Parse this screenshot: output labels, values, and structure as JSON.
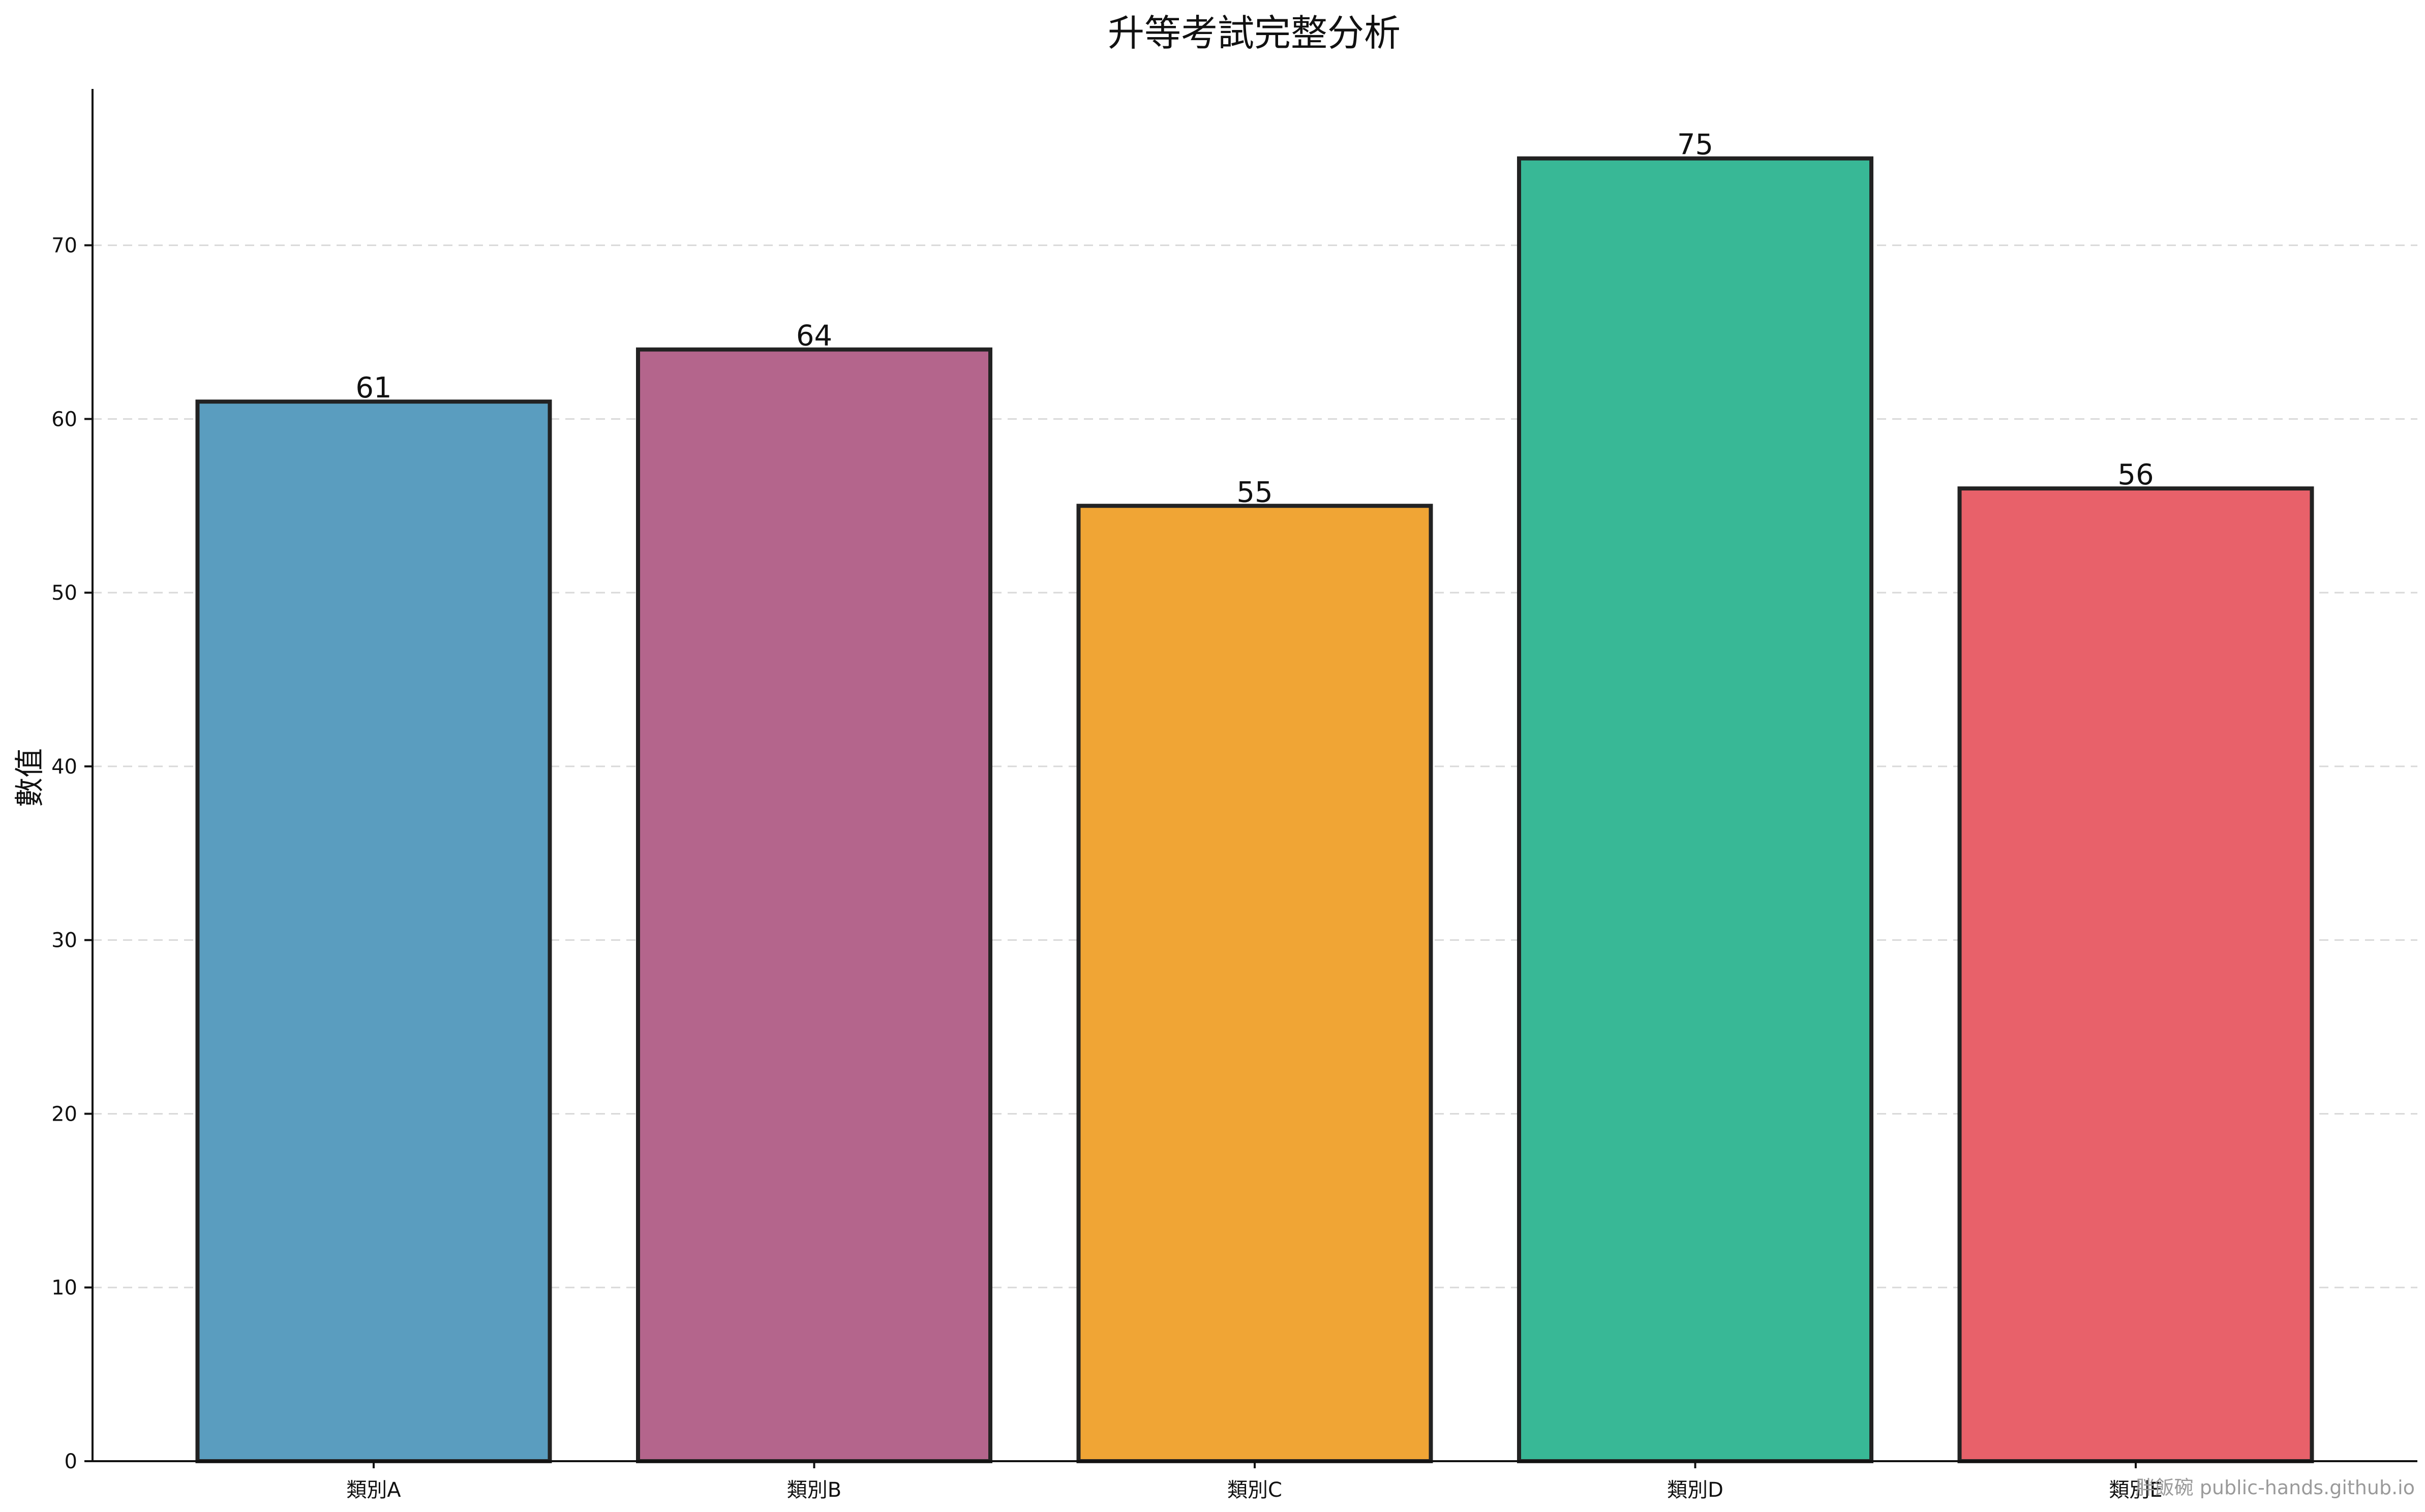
{
  "chart_data": {
    "type": "bar",
    "title": "升等考試完整分析",
    "xlabel": "",
    "ylabel": "數值",
    "categories": [
      "類別A",
      "類別B",
      "類別C",
      "類別D",
      "類別E"
    ],
    "values": [
      61,
      64,
      55,
      75,
      56
    ],
    "value_labels": [
      "61",
      "64",
      "55",
      "75",
      "56"
    ],
    "colors": [
      "#5a9dbf",
      "#b4658c",
      "#f0a535",
      "#38b896",
      "#e8616a"
    ],
    "edge_color": "#222222",
    "ylim": [
      0,
      79
    ],
    "yticks": [
      0,
      10,
      20,
      30,
      40,
      50,
      60,
      70
    ],
    "ytick_labels": [
      "0",
      "10",
      "20",
      "30",
      "40",
      "50",
      "60",
      "70"
    ],
    "grid": true,
    "grid_axis": "y",
    "legend": "none"
  },
  "watermark": {
    "text": "胖飯碗 public-hands.github.io"
  }
}
